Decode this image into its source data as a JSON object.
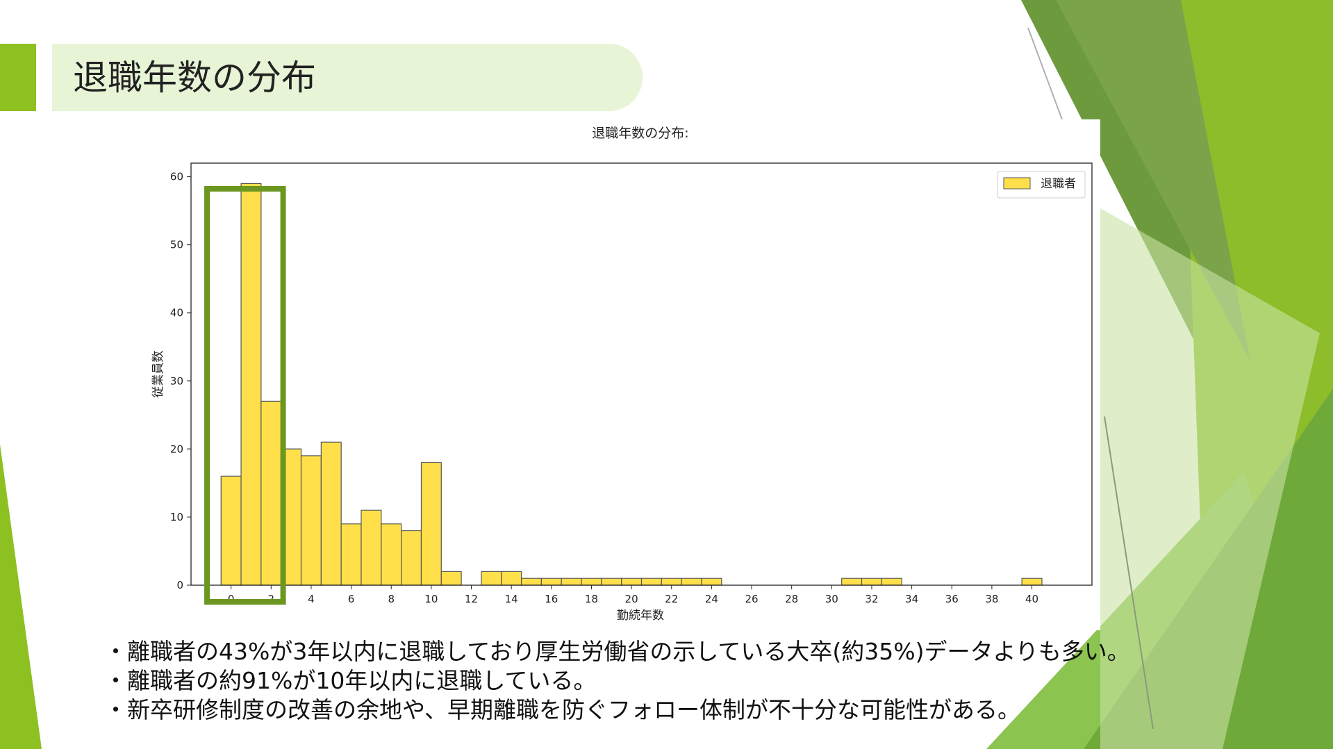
{
  "slide": {
    "title": "退職年数の分布",
    "bullets": [
      "・離職者の43%が3年以内に退職しており厚生労働省の示している大卒(約35%)データよりも多い。",
      "・離職者の約91%が10年以内に退職している。",
      "・新卒研修制度の改善の余地や、早期離職を防ぐフォロー体制が不十分な可能性がある。"
    ]
  },
  "colors": {
    "accent_green": "#8dc021",
    "highlight_box": "#6b961f",
    "bar_fill": "#ffe04b",
    "bar_edge": "#555555"
  },
  "chart_data": {
    "type": "bar",
    "title": "退職年数の分布:",
    "xlabel": "勤続年数",
    "ylabel": "従業員数",
    "xlim": [
      -2,
      43
    ],
    "ylim": [
      0,
      62
    ],
    "xticks": [
      0,
      2,
      4,
      6,
      8,
      10,
      12,
      14,
      16,
      18,
      20,
      22,
      24,
      26,
      28,
      30,
      32,
      34,
      36,
      38,
      40
    ],
    "yticks": [
      0,
      10,
      20,
      30,
      40,
      50,
      60
    ],
    "legend_position": "top-right",
    "bin_width": 1,
    "series": [
      {
        "name": "退職者",
        "bins": [
          {
            "x": 0,
            "y": 16
          },
          {
            "x": 1,
            "y": 59
          },
          {
            "x": 2,
            "y": 27
          },
          {
            "x": 3,
            "y": 20
          },
          {
            "x": 4,
            "y": 19
          },
          {
            "x": 5,
            "y": 21
          },
          {
            "x": 6,
            "y": 9
          },
          {
            "x": 7,
            "y": 11
          },
          {
            "x": 8,
            "y": 9
          },
          {
            "x": 9,
            "y": 8
          },
          {
            "x": 10,
            "y": 18
          },
          {
            "x": 11,
            "y": 2
          },
          {
            "x": 13,
            "y": 2
          },
          {
            "x": 14,
            "y": 2
          },
          {
            "x": 15,
            "y": 1
          },
          {
            "x": 16,
            "y": 1
          },
          {
            "x": 17,
            "y": 1
          },
          {
            "x": 18,
            "y": 1
          },
          {
            "x": 19,
            "y": 1
          },
          {
            "x": 20,
            "y": 1
          },
          {
            "x": 21,
            "y": 1
          },
          {
            "x": 22,
            "y": 1
          },
          {
            "x": 23,
            "y": 1
          },
          {
            "x": 24,
            "y": 1
          },
          {
            "x": 31,
            "y": 1
          },
          {
            "x": 32,
            "y": 1
          },
          {
            "x": 33,
            "y": 1
          },
          {
            "x": 40,
            "y": 1
          }
        ]
      }
    ],
    "highlight_x_range": [
      -1.2,
      2.6
    ]
  }
}
